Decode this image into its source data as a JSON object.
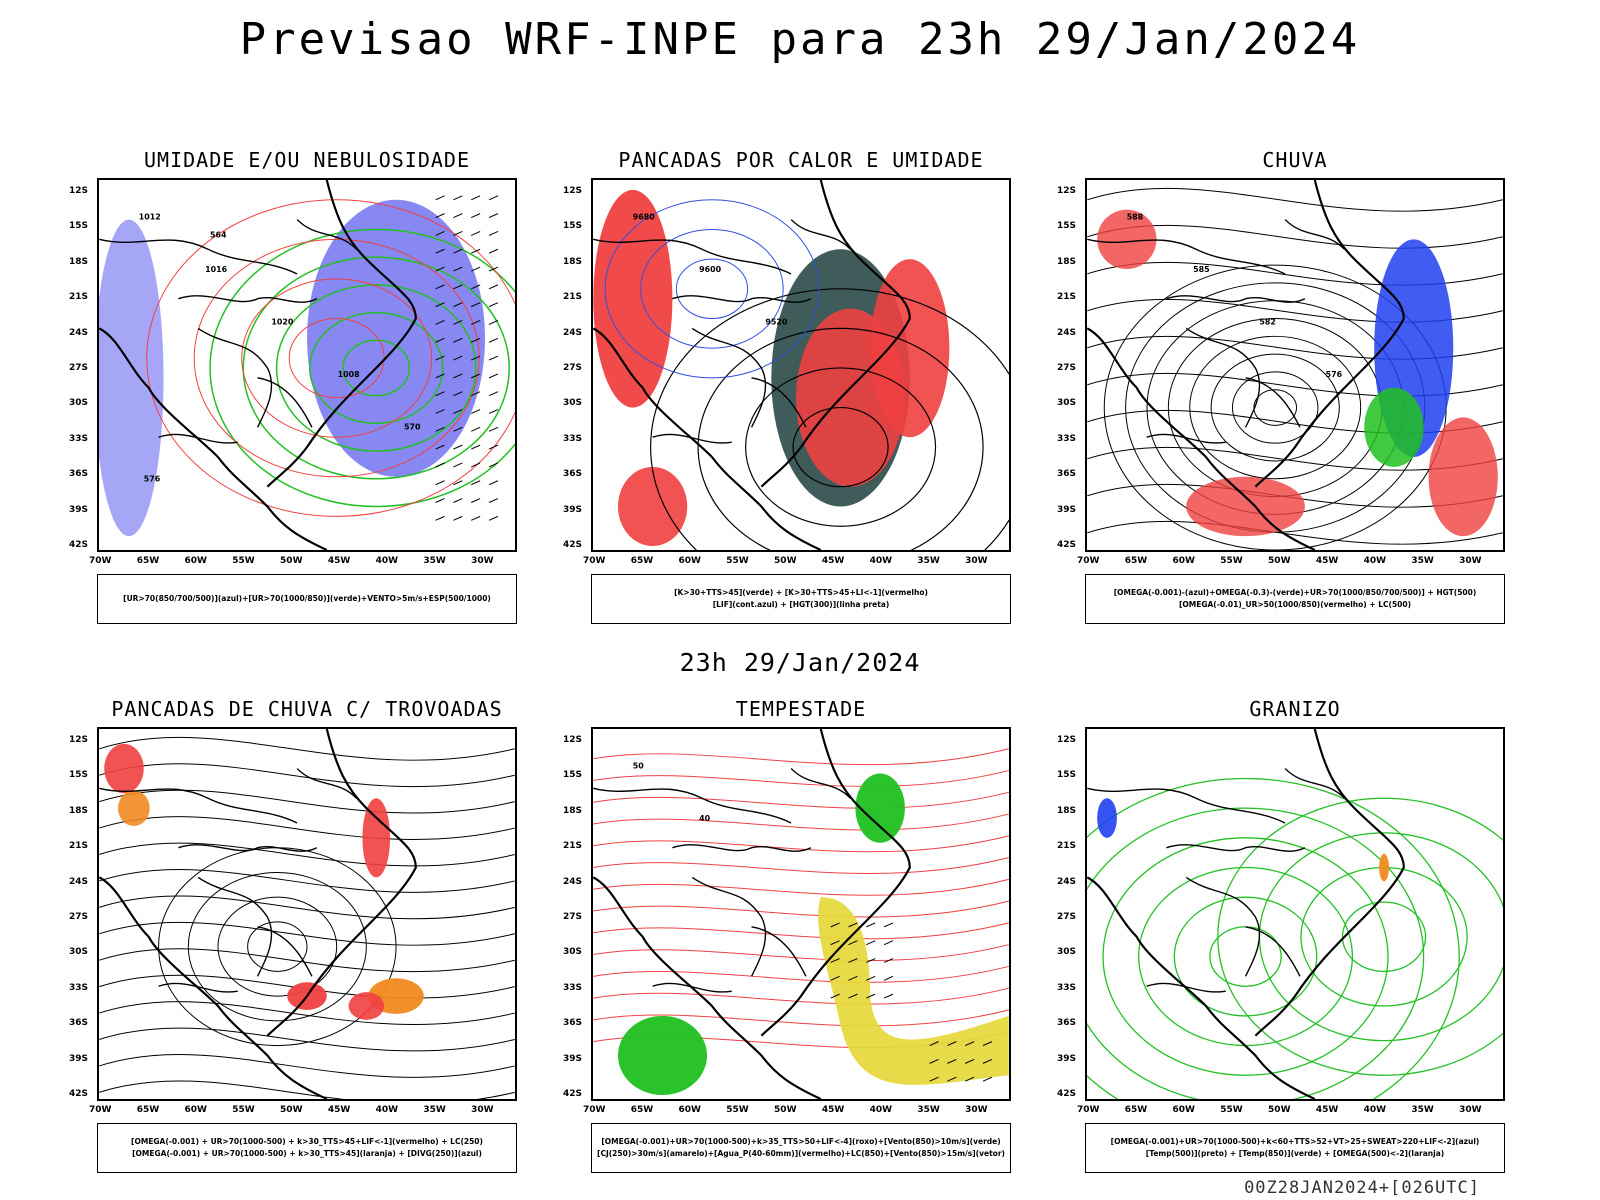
{
  "title": "Previsao WRF-INPE  para 23h 29/Jan/2024",
  "subtitle": "23h 29/Jan/2024",
  "footer": "00Z28JAN2024+[026UTC]",
  "lat_ticks": [
    "12S",
    "15S",
    "18S",
    "21S",
    "24S",
    "27S",
    "30S",
    "33S",
    "36S",
    "39S",
    "42S"
  ],
  "lon_ticks": [
    "70W",
    "65W",
    "60W",
    "55W",
    "50W",
    "45W",
    "40W",
    "35W",
    "30W"
  ],
  "colors": {
    "blue": "#6a6af0",
    "green": "#22c022",
    "red": "#f04040",
    "darkgreen": "#2a4a48",
    "orange": "#f08a20",
    "yellow": "#e6d83a",
    "brightgreen": "#20c020"
  },
  "panels": [
    {
      "id": "umidade",
      "title": "UMIDADE E/OU NEBULOSIDADE",
      "legend": [
        "[UR>70(850/700/500)](azul)+[UR>70(1000/850)](verde)+VENTO>5m/s+ESP(500/1000)"
      ],
      "labels": [
        "1012",
        "1016",
        "1020",
        "1008",
        "570",
        "576",
        "564"
      ]
    },
    {
      "id": "pancadas-calor",
      "title": "PANCADAS POR CALOR E UMIDADE",
      "legend": [
        "[K>30+TTS>45](verde) + [K>30+TTS>45+LI<-1](vermelho)",
        "[LIF](cont.azul) + [HGT(300)](linha preta)"
      ],
      "labels": [
        "9680",
        "9600",
        "9520"
      ]
    },
    {
      "id": "chuva",
      "title": "CHUVA",
      "legend": [
        "[OMEGA(-0.001)-(azul)+OMEGA(-0.3)-(verde)+UR>70(1000/850/700/500)] + HGT(500)",
        "[OMEGA(-0.01)_UR>50(1000/850)(vermelho) + LC(500)"
      ],
      "labels": [
        "588",
        "585",
        "582",
        "576"
      ]
    },
    {
      "id": "trovoadas",
      "title": "PANCADAS DE CHUVA C/ TROVOADAS",
      "legend": [
        "[OMEGA(-0.001) + UR>70(1000-500) + k>30_TTS>45+LIF<-1](vermelho) + LC(250)",
        "[OMEGA(-0.001) + UR>70(1000-500) + k>30_TTS>45](laranja) + [DIVG(250)](azul)"
      ],
      "labels": []
    },
    {
      "id": "tempestade",
      "title": "TEMPESTADE",
      "legend": [
        "[OMEGA(-0.001)+UR>70(1000-500)+k>35_TTS>50+LIF<-4](roxo)+[Vento(850)>10m/s](verde)",
        "[CJ(250)>30m/s](amarelo)+[Agua_P(40-60mm)](vermelho)+LC(850)+[Vento(850)>15m/s](vetor)"
      ],
      "labels": [
        "50",
        "40"
      ]
    },
    {
      "id": "granizo",
      "title": "GRANIZO",
      "legend": [
        "[OMEGA(-0.001)+UR>70(1000-500)+k<60+TTS>52+VT>25+SWEAT>220+LIF<-2](azul)",
        "[Temp(500)](preto) + [Temp(850)](verde) + [OMEGA(500)<-2](laranja)"
      ],
      "labels": []
    }
  ]
}
